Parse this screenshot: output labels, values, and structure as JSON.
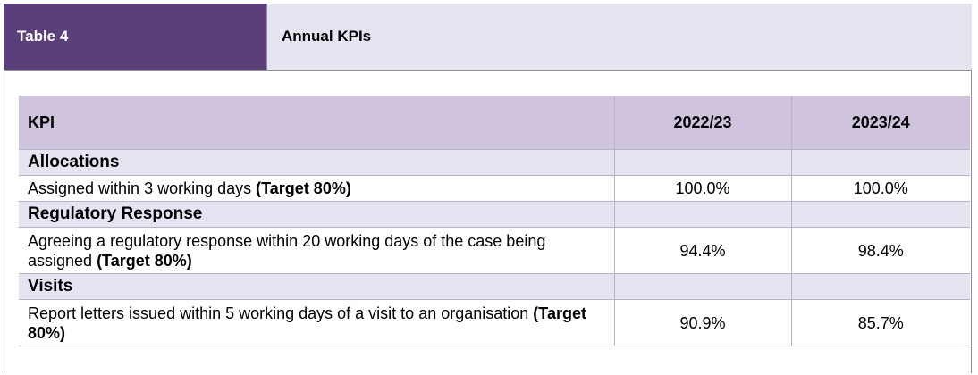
{
  "header": {
    "tag": "Table 4",
    "title": "Annual KPIs"
  },
  "table": {
    "columns": [
      "KPI",
      "2022/23",
      "2023/24"
    ],
    "sections": [
      {
        "name": "Allocations",
        "rows": [
          {
            "text": "Assigned within 3 working days ",
            "target": "(Target 80%)",
            "v2022": "100.0%",
            "v2023": "100.0%"
          }
        ]
      },
      {
        "name": "Regulatory Response",
        "rows": [
          {
            "text": "Agreeing a regulatory response within 20 working days of the case being assigned ",
            "target": "(Target 80%)",
            "v2022": "94.4%",
            "v2023": "98.4%"
          }
        ]
      },
      {
        "name": "Visits",
        "rows": [
          {
            "text": "Report letters issued within 5 working days of a visit to an organisation ",
            "target": "(Target 80%)",
            "v2022": "90.9%",
            "v2023": "85.7%"
          }
        ]
      }
    ]
  }
}
